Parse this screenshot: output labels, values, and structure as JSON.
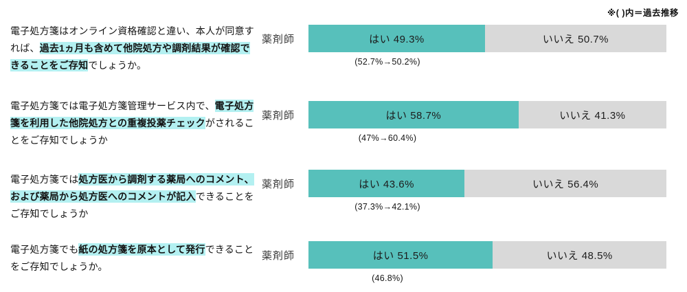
{
  "note": "※( )内＝過去推移",
  "colors": {
    "yes_bar": "#57c0bb",
    "no_bar": "#d9d9d9",
    "highlight": "#b3f0f1"
  },
  "rows": [
    {
      "question": {
        "pre": "電子処方箋はオンライン資格確認と違い、本人が同意すれば、",
        "mark": "過去1ヵ月も含めて他院処方や調剤結果が確認できることをご存知",
        "post": "でしょうか。"
      },
      "group_label": "薬剤師",
      "yes_label": "はい 49.3%",
      "no_label": "いいえ 50.7%",
      "yes_pct": 49.3,
      "no_pct": 50.7,
      "trend": "(52.7%→50.2%)"
    },
    {
      "question": {
        "pre": "電子処方箋では電子処方箋管理サービス内で、",
        "mark": "電子処方箋を利用した他院処方との重複投薬チェック",
        "post": "がされることをご存知でしょうか"
      },
      "group_label": "薬剤師",
      "yes_label": "はい 58.7%",
      "no_label": "いいえ 41.3%",
      "yes_pct": 58.7,
      "no_pct": 41.3,
      "trend": "(47%→60.4%)"
    },
    {
      "question": {
        "pre": "電子処方箋では",
        "mark": "処方医から調剤する薬局へのコメント、および薬局から処方医へのコメントが記入",
        "post": "できることをご存知でしょうか"
      },
      "group_label": "薬剤師",
      "yes_label": "はい 43.6%",
      "no_label": "いいえ 56.4%",
      "yes_pct": 43.6,
      "no_pct": 56.4,
      "trend": "(37.3%→42.1%)"
    },
    {
      "question": {
        "pre": "電子処方箋でも",
        "mark": "紙の処方箋を原本として発行",
        "post": "できることをご存知でしょうか。"
      },
      "group_label": "薬剤師",
      "yes_label": "はい 51.5%",
      "no_label": "いいえ 48.5%",
      "yes_pct": 51.5,
      "no_pct": 48.5,
      "trend": "(46.8%)"
    }
  ],
  "chart_data": {
    "type": "bar",
    "subtype": "horizontal-stacked-100percent",
    "title": "",
    "note": "※( )内＝過去推移",
    "group_label": "薬剤師",
    "categories": [
      "電子処方箋はオンライン資格確認と違い、本人が同意すれば、過去1ヵ月も含めて他院処方や調剤結果が確認できることをご存知でしょうか。",
      "電子処方箋では電子処方箋管理サービス内で、電子処方箋を利用した他院処方との重複投薬チェックがされることをご存知でしょうか",
      "電子処方箋では処方医から調剤する薬局へのコメント、および薬局から処方医へのコメントが記入できることをご存知でしょうか",
      "電子処方箋でも紙の処方箋を原本として発行できることをご存知でしょうか。"
    ],
    "series": [
      {
        "name": "はい",
        "values": [
          49.3,
          58.7,
          43.6,
          51.5
        ],
        "color": "#57c0bb"
      },
      {
        "name": "いいえ",
        "values": [
          50.7,
          41.3,
          56.4,
          48.5
        ],
        "color": "#d9d9d9"
      }
    ],
    "past_trends": [
      "52.7%→50.2%",
      "47%→60.4%",
      "37.3%→42.1%",
      "46.8%"
    ],
    "xlim": [
      0,
      100
    ],
    "grid": false,
    "legend": "labels-inside-bars",
    "data_labels_inside": true
  }
}
